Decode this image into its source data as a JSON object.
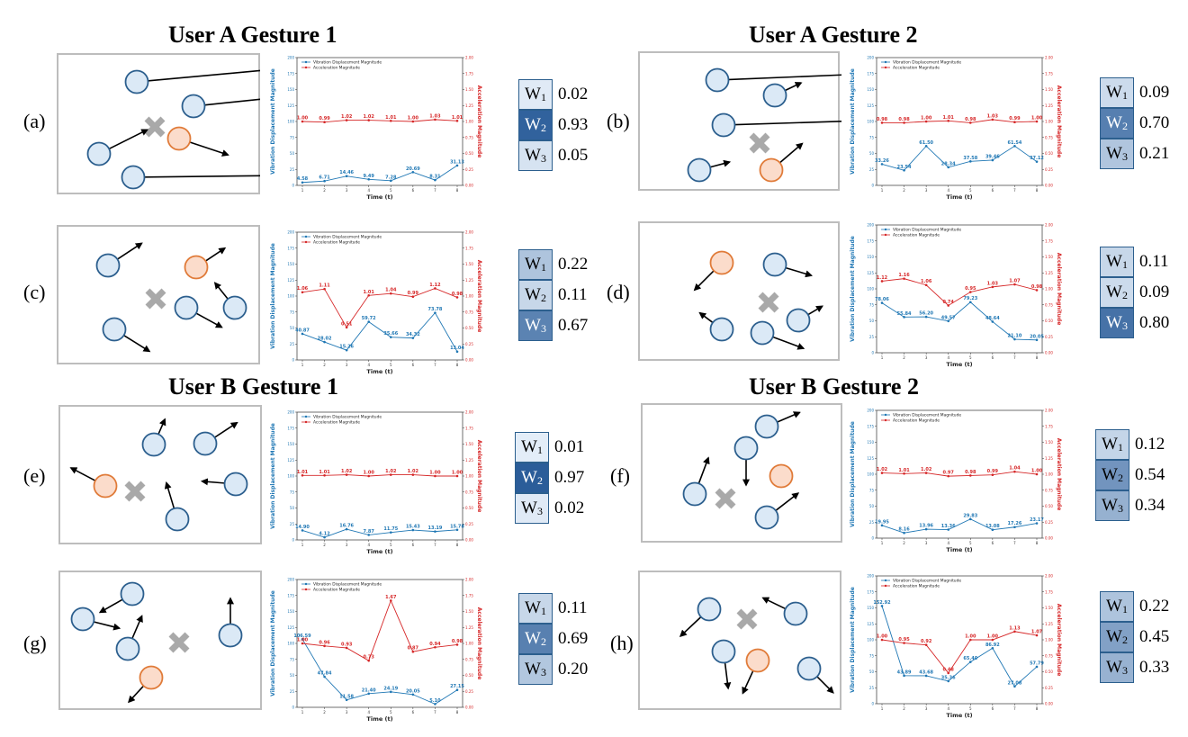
{
  "section_titles": {
    "user_a_gesture_1": "User A Gesture 1",
    "user_a_gesture_2": "User A Gesture 2",
    "user_b_gesture_1": "User B Gesture 1",
    "user_b_gesture_2": "User B Gesture 2"
  },
  "colors": {
    "vibration": "#1f77b4",
    "acceleration": "#d62728",
    "agent_fill": "#dbe9f6",
    "agent_stroke": "#2c5f8e",
    "target_fill": "#fbdccb",
    "target_stroke": "#e07b39",
    "cross": "#a9a9a9"
  },
  "weight_labels": [
    "W",
    "W",
    "W"
  ],
  "weight_subscripts": [
    "1",
    "2",
    "3"
  ],
  "chart_data": [
    {
      "id": "a",
      "panel_label": "(a)",
      "type": "line",
      "xlabel": "Time (t)",
      "ylabel_left": "Vibration Displacement Magnitude",
      "ylabel_right": "Acceleration Magnitude",
      "x": [
        1,
        2,
        3,
        4,
        5,
        6,
        7,
        8
      ],
      "ylim_left": [
        0,
        200
      ],
      "ylim_right": [
        0,
        2
      ],
      "left_ticks": [
        "0",
        "25",
        "50",
        "75",
        "100",
        "125",
        "150",
        "175",
        "200"
      ],
      "right_ticks": [
        "0.00",
        "0.25",
        "0.50",
        "0.75",
        "1.00",
        "1.25",
        "1.50",
        "1.75",
        "2.00"
      ],
      "x_ticks": [
        "1",
        "2",
        "3",
        "4",
        "5",
        "6",
        "7",
        "8"
      ],
      "series": [
        {
          "name": "Vibration Displacement Magnitude",
          "axis": "left",
          "values": [
            4.58,
            6.71,
            14.46,
            9.49,
            7.28,
            20.69,
            8.31,
            31.13
          ],
          "labels": [
            "4.58",
            "6.71",
            "14.46",
            "9.49",
            "7.28",
            "20.69",
            "8.31",
            "31.13"
          ]
        },
        {
          "name": "Acceleration Magnitude",
          "axis": "right",
          "values": [
            1.0,
            0.99,
            1.02,
            1.02,
            1.01,
            1.0,
            1.03,
            1.01
          ],
          "labels": [
            "1.00",
            "0.99",
            "1.02",
            "1.02",
            "1.01",
            "1.00",
            "1.03",
            "1.01"
          ]
        }
      ],
      "weights": [
        "0.02",
        "0.93",
        "0.05"
      ],
      "weight_values": [
        0.02,
        0.93,
        0.05
      ]
    },
    {
      "id": "b",
      "panel_label": "(b)",
      "type": "line",
      "xlabel": "Time (t)",
      "ylabel_left": "Vibration Displacement Magnitude",
      "ylabel_right": "Acceleration Magnitude",
      "x": [
        1,
        2,
        3,
        4,
        5,
        6,
        7,
        8
      ],
      "ylim_left": [
        0,
        200
      ],
      "ylim_right": [
        0,
        2
      ],
      "left_ticks": [
        "0",
        "25",
        "50",
        "75",
        "100",
        "125",
        "150",
        "175",
        "200"
      ],
      "right_ticks": [
        "0.00",
        "0.25",
        "0.50",
        "0.75",
        "1.00",
        "1.25",
        "1.50",
        "1.75",
        "2.00"
      ],
      "x_ticks": [
        "1",
        "2",
        "3",
        "4",
        "5",
        "6",
        "7",
        "8"
      ],
      "series": [
        {
          "name": "Vibration Displacement Magnitude",
          "axis": "left",
          "values": [
            33.26,
            23.54,
            61.5,
            28.34,
            37.58,
            39.46,
            61.54,
            37.12
          ],
          "labels": [
            "33.26",
            "23.54",
            "61.50",
            "28.34",
            "37.58",
            "39.46",
            "61.54",
            "37.12"
          ]
        },
        {
          "name": "Acceleration Magnitude",
          "axis": "right",
          "values": [
            0.98,
            0.98,
            1.0,
            1.01,
            0.98,
            1.03,
            0.99,
            1.0
          ],
          "labels": [
            "0.98",
            "0.98",
            "1.00",
            "1.01",
            "0.98",
            "1.03",
            "0.99",
            "1.00"
          ]
        }
      ],
      "weights": [
        "0.09",
        "0.70",
        "0.21"
      ],
      "weight_values": [
        0.09,
        0.7,
        0.21
      ]
    },
    {
      "id": "c",
      "panel_label": "(c)",
      "type": "line",
      "xlabel": "Time (t)",
      "ylabel_left": "Vibration Displacement Magnitude",
      "ylabel_right": "Acceleration Magnitude",
      "x": [
        1,
        2,
        3,
        4,
        5,
        6,
        7,
        8
      ],
      "ylim_left": [
        0,
        200
      ],
      "ylim_right": [
        0,
        2
      ],
      "left_ticks": [
        "0",
        "25",
        "50",
        "75",
        "100",
        "125",
        "150",
        "175",
        "200"
      ],
      "right_ticks": [
        "0.00",
        "0.25",
        "0.50",
        "0.75",
        "1.00",
        "1.25",
        "1.50",
        "1.75",
        "2.00"
      ],
      "x_ticks": [
        "1",
        "2",
        "3",
        "4",
        "5",
        "6",
        "7",
        "8"
      ],
      "series": [
        {
          "name": "Vibration Displacement Magnitude",
          "axis": "left",
          "values": [
            40.87,
            28.02,
            15.26,
            59.72,
            35.66,
            34.32,
            73.78,
            13.04
          ],
          "labels": [
            "40.87",
            "28.02",
            "15.26",
            "59.72",
            "35.66",
            "34.32",
            "73.78",
            "13.04"
          ]
        },
        {
          "name": "Acceleration Magnitude",
          "axis": "right",
          "values": [
            1.06,
            1.11,
            0.51,
            1.01,
            1.04,
            0.99,
            1.12,
            0.98
          ],
          "labels": [
            "1.06",
            "1.11",
            "0.51",
            "1.01",
            "1.04",
            "0.99",
            "1.12",
            "0.98"
          ]
        }
      ],
      "weights": [
        "0.22",
        "0.11",
        "0.67"
      ],
      "weight_values": [
        0.22,
        0.11,
        0.67
      ]
    },
    {
      "id": "d",
      "panel_label": "(d)",
      "type": "line",
      "xlabel": "Time (t)",
      "ylabel_left": "Vibration Displacement Magnitude",
      "ylabel_right": "Acceleration Magnitude",
      "x": [
        1,
        2,
        3,
        4,
        5,
        6,
        7,
        8
      ],
      "ylim_left": [
        0,
        200
      ],
      "ylim_right": [
        0,
        2
      ],
      "left_ticks": [
        "0",
        "25",
        "50",
        "75",
        "100",
        "125",
        "150",
        "175",
        "200"
      ],
      "right_ticks": [
        "0.00",
        "0.25",
        "0.50",
        "0.75",
        "1.00",
        "1.25",
        "1.50",
        "1.75",
        "2.00"
      ],
      "x_ticks": [
        "1",
        "2",
        "3",
        "4",
        "5",
        "6",
        "7",
        "8"
      ],
      "series": [
        {
          "name": "Vibration Displacement Magnitude",
          "axis": "left",
          "values": [
            78.06,
            55.84,
            56.2,
            49.57,
            79.23,
            48.64,
            21.1,
            20.05
          ],
          "labels": [
            "78.06",
            "55.84",
            "56.20",
            "49.57",
            "79.23",
            "48.64",
            "21.10",
            "20.05"
          ]
        },
        {
          "name": "Acceleration Magnitude",
          "axis": "right",
          "values": [
            1.12,
            1.16,
            1.06,
            0.74,
            0.95,
            1.03,
            1.07,
            0.98
          ],
          "labels": [
            "1.12",
            "1.16",
            "1.06",
            "0.74",
            "0.95",
            "1.03",
            "1.07",
            "0.98"
          ]
        }
      ],
      "weights": [
        "0.11",
        "0.09",
        "0.80"
      ],
      "weight_values": [
        0.11,
        0.09,
        0.8
      ]
    },
    {
      "id": "e",
      "panel_label": "(e)",
      "type": "line",
      "xlabel": "Time (t)",
      "ylabel_left": "Vibration Displacement Magnitude",
      "ylabel_right": "Acceleration Magnitude",
      "x": [
        1,
        2,
        3,
        4,
        5,
        6,
        7,
        8
      ],
      "ylim_left": [
        0,
        200
      ],
      "ylim_right": [
        0,
        2
      ],
      "left_ticks": [
        "0",
        "25",
        "50",
        "75",
        "100",
        "125",
        "150",
        "175",
        "200"
      ],
      "right_ticks": [
        "0.00",
        "0.25",
        "0.50",
        "0.75",
        "1.00",
        "1.25",
        "1.50",
        "1.75",
        "2.00"
      ],
      "x_ticks": [
        "1",
        "2",
        "3",
        "4",
        "5",
        "6",
        "7",
        "8"
      ],
      "series": [
        {
          "name": "Vibration Displacement Magnitude",
          "axis": "left",
          "values": [
            14.9,
            4.12,
            16.76,
            7.87,
            11.75,
            15.43,
            13.19,
            15.78
          ],
          "labels": [
            "14.90",
            "4.12",
            "16.76",
            "7.87",
            "11.75",
            "15.43",
            "13.19",
            "15.78"
          ]
        },
        {
          "name": "Acceleration Magnitude",
          "axis": "right",
          "values": [
            1.01,
            1.01,
            1.02,
            1.0,
            1.02,
            1.02,
            1.0,
            1.0
          ],
          "labels": [
            "1.01",
            "1.01",
            "1.02",
            "1.00",
            "1.02",
            "1.02",
            "1.00",
            "1.00"
          ]
        }
      ],
      "weights": [
        "0.01",
        "0.97",
        "0.02"
      ],
      "weight_values": [
        0.01,
        0.97,
        0.02
      ]
    },
    {
      "id": "f",
      "panel_label": "(f)",
      "type": "line",
      "xlabel": "Time (t)",
      "ylabel_left": "Vibration Displacement Magnitude",
      "ylabel_right": "Acceleration Magnitude",
      "x": [
        1,
        2,
        3,
        4,
        5,
        6,
        7,
        8
      ],
      "ylim_left": [
        0,
        200
      ],
      "ylim_right": [
        0,
        2
      ],
      "left_ticks": [
        "0",
        "25",
        "50",
        "75",
        "100",
        "125",
        "150",
        "175",
        "200"
      ],
      "right_ticks": [
        "0.00",
        "0.25",
        "0.50",
        "0.75",
        "1.00",
        "1.25",
        "1.50",
        "1.75",
        "2.00"
      ],
      "x_ticks": [
        "1",
        "2",
        "3",
        "4",
        "5",
        "6",
        "7",
        "8"
      ],
      "series": [
        {
          "name": "Vibration Displacement Magnitude",
          "axis": "left",
          "values": [
            19.95,
            8.16,
            13.96,
            13.36,
            29.83,
            13.08,
            17.26,
            23.17
          ],
          "labels": [
            "19.95",
            "8.16",
            "13.96",
            "13.36",
            "29.83",
            "13.08",
            "17.26",
            "23.17"
          ]
        },
        {
          "name": "Acceleration Magnitude",
          "axis": "right",
          "values": [
            1.02,
            1.01,
            1.02,
            0.97,
            0.98,
            0.99,
            1.04,
            1.0
          ],
          "labels": [
            "1.02",
            "1.01",
            "1.02",
            "0.97",
            "0.98",
            "0.99",
            "1.04",
            "1.00"
          ]
        }
      ],
      "weights": [
        "0.12",
        "0.54",
        "0.34"
      ],
      "weight_values": [
        0.12,
        0.54,
        0.34
      ]
    },
    {
      "id": "g",
      "panel_label": "(g)",
      "type": "line",
      "xlabel": "Time (t)",
      "ylabel_left": "Vibration Displacement Magnitude",
      "ylabel_right": "Acceleration Magnitude",
      "x": [
        1,
        2,
        3,
        4,
        5,
        6,
        7,
        8
      ],
      "ylim_left": [
        0,
        200
      ],
      "ylim_right": [
        0,
        2
      ],
      "left_ticks": [
        "0",
        "25",
        "50",
        "75",
        "100",
        "125",
        "150",
        "175",
        "200"
      ],
      "right_ticks": [
        "0.00",
        "0.25",
        "0.50",
        "0.75",
        "1.00",
        "1.25",
        "1.50",
        "1.75",
        "2.00"
      ],
      "x_ticks": [
        "1",
        "2",
        "3",
        "4",
        "5",
        "6",
        "7",
        "8"
      ],
      "series": [
        {
          "name": "Vibration Displacement Magnitude",
          "axis": "left",
          "values": [
            106.59,
            47.84,
            11.58,
            21.4,
            24.19,
            20.05,
            5.1,
            27.15
          ],
          "labels": [
            "106.59",
            "47.84",
            "11.58",
            "21.40",
            "24.19",
            "20.05",
            "5.10",
            "27.15"
          ]
        },
        {
          "name": "Acceleration Magnitude",
          "axis": "right",
          "values": [
            1.0,
            0.96,
            0.93,
            0.73,
            1.67,
            0.87,
            0.94,
            0.98
          ],
          "labels": [
            "1.00",
            "0.96",
            "0.93",
            "0.73",
            "1.67",
            "0.87",
            "0.94",
            "0.98"
          ]
        }
      ],
      "weights": [
        "0.11",
        "0.69",
        "0.20"
      ],
      "weight_values": [
        0.11,
        0.69,
        0.2
      ]
    },
    {
      "id": "h",
      "panel_label": "(h)",
      "type": "line",
      "xlabel": "Time (t)",
      "ylabel_left": "Vibration Displacement Magnitude",
      "ylabel_right": "Acceleration Magnitude",
      "x": [
        1,
        2,
        3,
        4,
        5,
        6,
        7,
        8
      ],
      "ylim_left": [
        0,
        200
      ],
      "ylim_right": [
        0,
        2
      ],
      "left_ticks": [
        "0",
        "25",
        "50",
        "75",
        "100",
        "125",
        "150",
        "175",
        "200"
      ],
      "right_ticks": [
        "0.00",
        "0.25",
        "0.50",
        "0.75",
        "1.00",
        "1.25",
        "1.50",
        "1.75",
        "2.00"
      ],
      "x_ticks": [
        "1",
        "2",
        "3",
        "4",
        "5",
        "6",
        "7",
        "8"
      ],
      "series": [
        {
          "name": "Vibration Displacement Magnitude",
          "axis": "left",
          "values": [
            152.92,
            43.89,
            43.68,
            35.36,
            65.4,
            86.92,
            27.08,
            57.79
          ],
          "labels": [
            "152.92",
            "43.89",
            "43.68",
            "35.36",
            "65.40",
            "86.92",
            "27.08",
            "57.79"
          ]
        },
        {
          "name": "Acceleration Magnitude",
          "axis": "right",
          "values": [
            1.0,
            0.95,
            0.92,
            0.48,
            1.0,
            1.0,
            1.13,
            1.07
          ],
          "labels": [
            "1.00",
            "0.95",
            "0.92",
            "0.48",
            "1.00",
            "1.00",
            "1.13",
            "1.07"
          ]
        }
      ],
      "weights": [
        "0.22",
        "0.45",
        "0.33"
      ],
      "weight_values": [
        0.22,
        0.45,
        0.33
      ]
    }
  ]
}
